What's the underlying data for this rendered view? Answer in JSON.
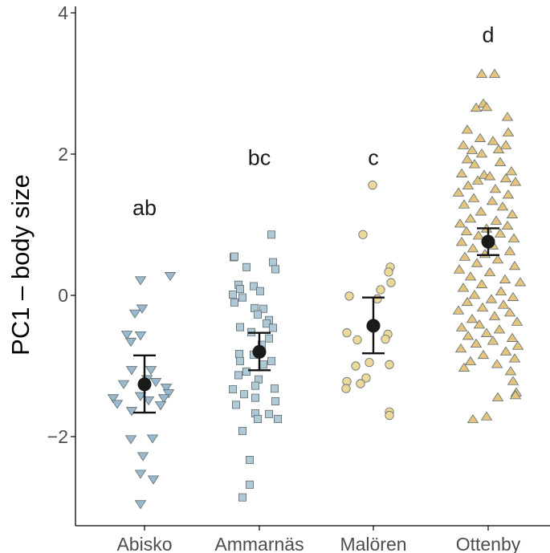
{
  "chart_data": {
    "type": "scatter",
    "title": "",
    "xlabel": "",
    "ylabel": "PC1 – body size",
    "ylim": [
      -3.2,
      4.1
    ],
    "y_ticks": [
      -2,
      0,
      2,
      4
    ],
    "y_tick_labels": [
      "−2",
      "0",
      "2",
      "4"
    ],
    "grid": false,
    "legend": "none",
    "categories": [
      "Abisko",
      "Ammarnäs",
      "Malören",
      "Ottenby"
    ],
    "groups": [
      {
        "name": "Abisko",
        "marker": "triangle-down",
        "fill": "#9ab9cc",
        "letter": "ab",
        "letter_y": 1.25,
        "mean": -1.26,
        "ci": [
          -1.66,
          -0.85
        ],
        "points": [
          {
            "x": -0.05,
            "y": 0.22
          },
          {
            "x": 0.32,
            "y": 0.28
          },
          {
            "x": -0.12,
            "y": -0.25
          },
          {
            "x": -0.03,
            "y": -0.18
          },
          {
            "x": -0.22,
            "y": -0.55
          },
          {
            "x": -0.05,
            "y": -0.56
          },
          {
            "x": -0.17,
            "y": -0.65
          },
          {
            "x": -0.16,
            "y": -1.05
          },
          {
            "x": 0.08,
            "y": -1.05
          },
          {
            "x": 0.03,
            "y": -1.18
          },
          {
            "x": 0.14,
            "y": -1.22
          },
          {
            "x": -0.26,
            "y": -1.25
          },
          {
            "x": 0.27,
            "y": -1.3
          },
          {
            "x": 0.3,
            "y": -1.38
          },
          {
            "x": -0.05,
            "y": -1.42
          },
          {
            "x": 0.24,
            "y": -1.45
          },
          {
            "x": 0.05,
            "y": -1.48
          },
          {
            "x": -0.39,
            "y": -1.45
          },
          {
            "x": -0.34,
            "y": -1.53
          },
          {
            "x": -0.16,
            "y": -1.63
          },
          {
            "x": 0.2,
            "y": -1.55
          },
          {
            "x": 0.1,
            "y": -2.02
          },
          {
            "x": -0.17,
            "y": -2.03
          },
          {
            "x": -0.02,
            "y": -2.27
          },
          {
            "x": -0.05,
            "y": -2.52
          },
          {
            "x": 0.11,
            "y": -2.6
          },
          {
            "x": -0.05,
            "y": -2.95
          }
        ]
      },
      {
        "name": "Ammarnäs",
        "marker": "square",
        "fill": "#b0c9d6",
        "letter": "bc",
        "letter_y": 1.96,
        "mean": -0.8,
        "ci": [
          -1.06,
          -0.53
        ],
        "points": [
          {
            "x": 0.15,
            "y": 0.86
          },
          {
            "x": -0.32,
            "y": 0.54
          },
          {
            "x": -0.31,
            "y": 0.55
          },
          {
            "x": 0.17,
            "y": 0.47
          },
          {
            "x": -0.16,
            "y": 0.4
          },
          {
            "x": 0.2,
            "y": 0.37
          },
          {
            "x": -0.26,
            "y": 0.15
          },
          {
            "x": -0.07,
            "y": 0.13
          },
          {
            "x": -0.24,
            "y": 0.09
          },
          {
            "x": 0.01,
            "y": 0.06
          },
          {
            "x": -0.33,
            "y": 0.01
          },
          {
            "x": -0.21,
            "y": -0.03
          },
          {
            "x": -0.31,
            "y": -0.1
          },
          {
            "x": -0.06,
            "y": -0.18
          },
          {
            "x": 0.05,
            "y": -0.19
          },
          {
            "x": -0.02,
            "y": -0.27
          },
          {
            "x": 0.12,
            "y": -0.35
          },
          {
            "x": 0.09,
            "y": -0.4
          },
          {
            "x": -0.24,
            "y": -0.45
          },
          {
            "x": 0.17,
            "y": -0.46
          },
          {
            "x": -0.1,
            "y": -0.52
          },
          {
            "x": 0.12,
            "y": -0.61
          },
          {
            "x": 0.03,
            "y": -0.7
          },
          {
            "x": -0.25,
            "y": -0.83
          },
          {
            "x": -0.07,
            "y": -0.84
          },
          {
            "x": -0.24,
            "y": -0.93
          },
          {
            "x": 0.15,
            "y": -0.93
          },
          {
            "x": 0.05,
            "y": -0.98
          },
          {
            "x": -0.16,
            "y": -1.08
          },
          {
            "x": -0.26,
            "y": -1.13
          },
          {
            "x": -0.01,
            "y": -1.19
          },
          {
            "x": -0.05,
            "y": -1.28
          },
          {
            "x": 0.19,
            "y": -1.32
          },
          {
            "x": -0.33,
            "y": -1.33
          },
          {
            "x": -0.19,
            "y": -1.4
          },
          {
            "x": -0.05,
            "y": -1.45
          },
          {
            "x": 0.2,
            "y": -1.5
          },
          {
            "x": -0.29,
            "y": -1.55
          },
          {
            "x": -0.05,
            "y": -1.67
          },
          {
            "x": 0.12,
            "y": -1.68
          },
          {
            "x": -0.02,
            "y": -1.75
          },
          {
            "x": 0.23,
            "y": -1.75
          },
          {
            "x": -0.21,
            "y": -1.92
          },
          {
            "x": -0.12,
            "y": -2.33
          },
          {
            "x": -0.12,
            "y": -2.68
          },
          {
            "x": -0.21,
            "y": -2.86
          }
        ]
      },
      {
        "name": "Malören",
        "marker": "circle",
        "fill": "#ecd89a",
        "letter": "c",
        "letter_y": 1.96,
        "mean": -0.43,
        "ci": [
          -0.82,
          -0.03
        ],
        "points": [
          {
            "x": -0.01,
            "y": 1.56
          },
          {
            "x": -0.13,
            "y": 0.86
          },
          {
            "x": 0.21,
            "y": 0.4
          },
          {
            "x": 0.19,
            "y": 0.33
          },
          {
            "x": 0.22,
            "y": 0.18
          },
          {
            "x": 0.09,
            "y": 0.08
          },
          {
            "x": -0.3,
            "y": -0.01
          },
          {
            "x": 0.05,
            "y": -0.05
          },
          {
            "x": -0.03,
            "y": -0.44
          },
          {
            "x": -0.33,
            "y": -0.53
          },
          {
            "x": 0.18,
            "y": -0.55
          },
          {
            "x": -0.2,
            "y": -0.63
          },
          {
            "x": 0.15,
            "y": -0.62
          },
          {
            "x": -0.05,
            "y": -0.95
          },
          {
            "x": 0.2,
            "y": -0.98
          },
          {
            "x": -0.22,
            "y": -1.0
          },
          {
            "x": -0.09,
            "y": -1.17
          },
          {
            "x": -0.33,
            "y": -1.22
          },
          {
            "x": -0.16,
            "y": -1.25
          },
          {
            "x": -0.34,
            "y": -1.32
          },
          {
            "x": 0.2,
            "y": -1.65
          },
          {
            "x": 0.2,
            "y": -1.7
          }
        ]
      },
      {
        "name": "Ottenby",
        "marker": "triangle-up",
        "fill": "#e5c57e",
        "letter": "d",
        "letter_y": 3.7,
        "mean": 0.76,
        "ci": [
          0.57,
          0.95
        ],
        "points": [
          {
            "x": -0.08,
            "y": 3.13
          },
          {
            "x": 0.08,
            "y": 3.13
          },
          {
            "x": -0.06,
            "y": 2.71
          },
          {
            "x": -0.15,
            "y": 2.65
          },
          {
            "x": -0.02,
            "y": 2.66
          },
          {
            "x": 0.24,
            "y": 2.52
          },
          {
            "x": -0.26,
            "y": 2.34
          },
          {
            "x": 0.25,
            "y": 2.3
          },
          {
            "x": -0.1,
            "y": 2.22
          },
          {
            "x": 0.06,
            "y": 2.18
          },
          {
            "x": -0.31,
            "y": 2.12
          },
          {
            "x": 0.22,
            "y": 2.12
          },
          {
            "x": -0.2,
            "y": 2.05
          },
          {
            "x": 0.13,
            "y": 2.06
          },
          {
            "x": -0.08,
            "y": 2.0
          },
          {
            "x": -0.26,
            "y": 1.92
          },
          {
            "x": 0.15,
            "y": 1.88
          },
          {
            "x": -0.17,
            "y": 1.85
          },
          {
            "x": 0.29,
            "y": 1.75
          },
          {
            "x": -0.33,
            "y": 1.72
          },
          {
            "x": -0.05,
            "y": 1.7
          },
          {
            "x": 0.02,
            "y": 1.68
          },
          {
            "x": 0.22,
            "y": 1.65
          },
          {
            "x": -0.13,
            "y": 1.62
          },
          {
            "x": 0.34,
            "y": 1.6
          },
          {
            "x": -0.25,
            "y": 1.55
          },
          {
            "x": 0.09,
            "y": 1.5
          },
          {
            "x": -0.37,
            "y": 1.45
          },
          {
            "x": 0.25,
            "y": 1.42
          },
          {
            "x": -0.18,
            "y": 1.37
          },
          {
            "x": 0.05,
            "y": 1.33
          },
          {
            "x": -0.3,
            "y": 1.28
          },
          {
            "x": 0.18,
            "y": 1.25
          },
          {
            "x": -0.09,
            "y": 1.18
          },
          {
            "x": 0.3,
            "y": 1.14
          },
          {
            "x": -0.22,
            "y": 1.08
          },
          {
            "x": 0.1,
            "y": 1.05
          },
          {
            "x": -0.35,
            "y": 1.01
          },
          {
            "x": 0.24,
            "y": 0.98
          },
          {
            "x": -0.02,
            "y": 0.94
          },
          {
            "x": -0.27,
            "y": 0.9
          },
          {
            "x": 0.15,
            "y": 0.87
          },
          {
            "x": -0.12,
            "y": 0.84
          },
          {
            "x": 0.32,
            "y": 0.8
          },
          {
            "x": -0.33,
            "y": 0.75
          },
          {
            "x": 0.06,
            "y": 0.7
          },
          {
            "x": -0.19,
            "y": 0.66
          },
          {
            "x": 0.27,
            "y": 0.62
          },
          {
            "x": -0.04,
            "y": 0.58
          },
          {
            "x": -0.29,
            "y": 0.54
          },
          {
            "x": 0.12,
            "y": 0.5
          },
          {
            "x": -0.14,
            "y": 0.45
          },
          {
            "x": 0.33,
            "y": 0.41
          },
          {
            "x": -0.36,
            "y": 0.36
          },
          {
            "x": 0.02,
            "y": 0.32
          },
          {
            "x": -0.22,
            "y": 0.26
          },
          {
            "x": 0.21,
            "y": 0.22
          },
          {
            "x": 0.4,
            "y": 0.18
          },
          {
            "x": -0.08,
            "y": 0.15
          },
          {
            "x": -0.31,
            "y": 0.1
          },
          {
            "x": 0.16,
            "y": 0.05
          },
          {
            "x": -0.17,
            "y": 0.0
          },
          {
            "x": 0.31,
            "y": -0.03
          },
          {
            "x": 0.04,
            "y": -0.06
          },
          {
            "x": -0.26,
            "y": -0.1
          },
          {
            "x": 0.19,
            "y": -0.14
          },
          {
            "x": -0.07,
            "y": -0.18
          },
          {
            "x": -0.37,
            "y": -0.22
          },
          {
            "x": 0.27,
            "y": -0.25
          },
          {
            "x": 0.08,
            "y": -0.3
          },
          {
            "x": -0.2,
            "y": -0.34
          },
          {
            "x": 0.36,
            "y": -0.38
          },
          {
            "x": -0.11,
            "y": -0.42
          },
          {
            "x": -0.33,
            "y": -0.46
          },
          {
            "x": 0.14,
            "y": -0.49
          },
          {
            "x": -0.02,
            "y": -0.54
          },
          {
            "x": -0.25,
            "y": -0.58
          },
          {
            "x": 0.3,
            "y": -0.61
          },
          {
            "x": 0.06,
            "y": -0.65
          },
          {
            "x": -0.15,
            "y": -0.69
          },
          {
            "x": 0.37,
            "y": -0.72
          },
          {
            "x": -0.34,
            "y": -0.76
          },
          {
            "x": 0.22,
            "y": -0.8
          },
          {
            "x": -0.06,
            "y": -0.85
          },
          {
            "x": 0.33,
            "y": -0.9
          },
          {
            "x": -0.22,
            "y": -0.94
          },
          {
            "x": 0.11,
            "y": -0.98
          },
          {
            "x": -0.3,
            "y": -1.03
          },
          {
            "x": 0.28,
            "y": -1.08
          },
          {
            "x": 0.31,
            "y": -1.22
          },
          {
            "x": 0.35,
            "y": -1.38
          },
          {
            "x": 0.34,
            "y": -1.42
          },
          {
            "x": 0.12,
            "y": -1.45
          },
          {
            "x": -0.02,
            "y": -1.72
          },
          {
            "x": -0.19,
            "y": -1.76
          }
        ]
      }
    ]
  }
}
